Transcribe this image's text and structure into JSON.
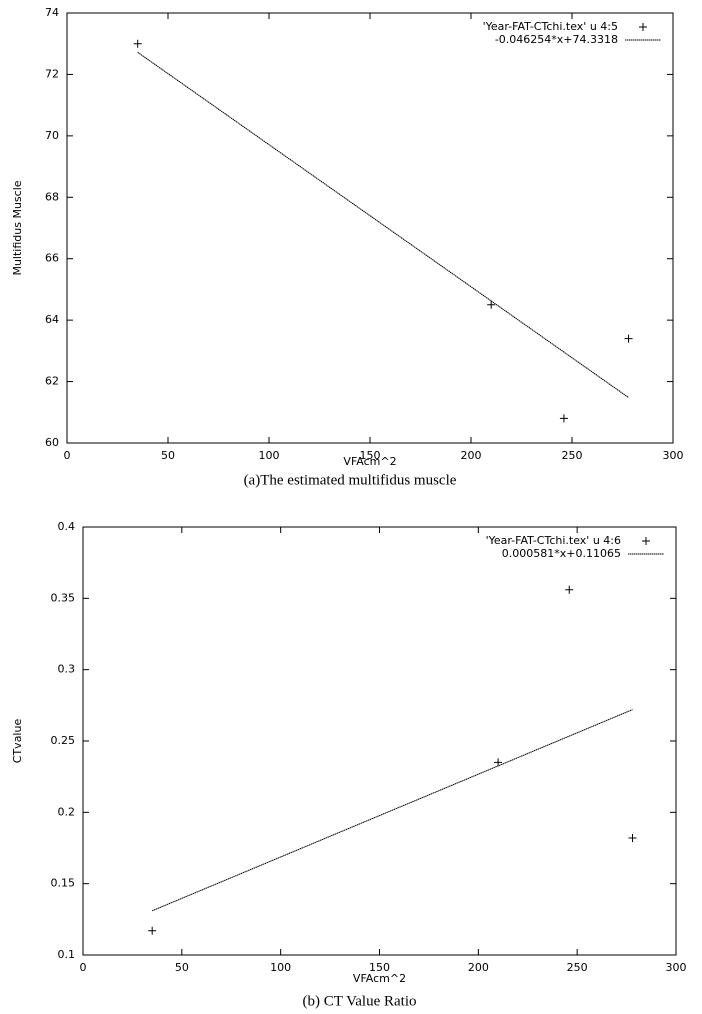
{
  "chart_data": [
    {
      "type": "scatter",
      "xlabel": "VFAcm^2",
      "ylabel": "Multifidus Muscle",
      "caption": "(a)The estimated multifidus muscle",
      "xlim": [
        0,
        300
      ],
      "xticks": [
        0,
        50,
        100,
        150,
        200,
        250,
        300
      ],
      "ylim": [
        60,
        74
      ],
      "yticks": [
        60,
        62,
        64,
        66,
        68,
        70,
        72,
        74
      ],
      "grid": false,
      "legend": "top-right",
      "series": [
        {
          "name": "'Year-FAT-CTchi.tex' u 4:5",
          "style": "points",
          "color": "#000000",
          "x": [
            35,
            210,
            246,
            278
          ],
          "values": [
            73,
            64.5,
            60.8,
            63.4
          ]
        },
        {
          "name": "-0.046254*x+74.3318",
          "style": "line",
          "color": "#000000",
          "x": [
            35,
            278
          ],
          "values": [
            72.72,
            61.48
          ]
        }
      ]
    },
    {
      "type": "scatter",
      "xlabel": "VFAcm^2",
      "ylabel": "CTvalue",
      "caption": "(b) CT Value Ratio",
      "xlim": [
        0,
        300
      ],
      "xticks": [
        0,
        50,
        100,
        150,
        200,
        250,
        300
      ],
      "ylim": [
        0.1,
        0.4
      ],
      "yticks": [
        0.1,
        0.15,
        0.2,
        0.25,
        0.3,
        0.35,
        0.4
      ],
      "grid": false,
      "legend": "top-right",
      "series": [
        {
          "name": "'Year-FAT-CTchi.tex' u 4:6",
          "style": "points",
          "color": "#000000",
          "x": [
            35,
            210,
            246,
            278
          ],
          "values": [
            0.117,
            0.235,
            0.356,
            0.182
          ]
        },
        {
          "name": "0.000581*x+0.11065",
          "style": "line",
          "color": "#000000",
          "x": [
            35,
            278
          ],
          "values": [
            0.131,
            0.272
          ]
        }
      ]
    }
  ]
}
